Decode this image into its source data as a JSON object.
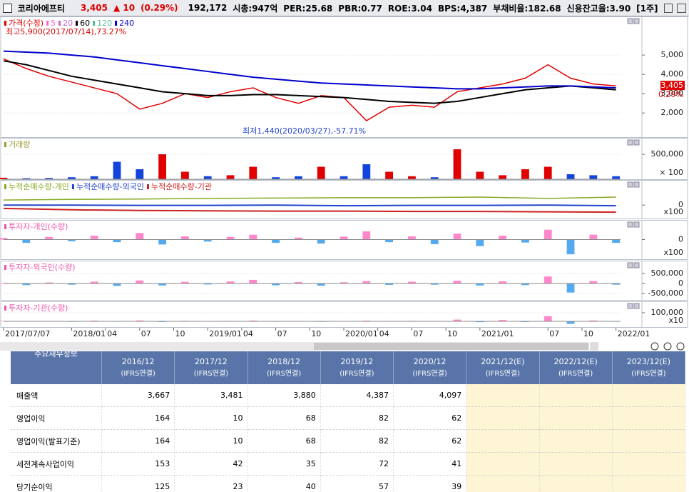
{
  "header": {
    "name": "코리아에프티",
    "price": "3,405",
    "change": "▲ 10",
    "rate": "(0.29%)",
    "volume": "192,172",
    "stats": [
      "시총:947억",
      "PER:25.68",
      "PBR:0.77",
      "ROE:3.04",
      "BPS:4,387",
      "부채비율:182.68",
      "신용잔고율:3.90"
    ],
    "period": "[1주]"
  },
  "price_panel": {
    "legend": [
      {
        "name": "가격(수정)",
        "color": "#e00000",
        "values": [
          4800,
          4300,
          3900,
          3600,
          3300,
          3000,
          2200,
          2500,
          3000,
          2800,
          3100,
          3300,
          2800,
          2500,
          2900,
          2800,
          1600,
          2300,
          2400,
          2300,
          3100,
          3300,
          3500,
          3800,
          4500,
          3800,
          3500,
          3405
        ]
      },
      {
        "name": "5",
        "color": "#ff66cc"
      },
      {
        "name": "20",
        "color": "#cc66cc"
      },
      {
        "name": "60",
        "color": "#000000",
        "values": [
          4700,
          4500,
          4200,
          3900,
          3700,
          3500,
          3300,
          3100,
          3000,
          2900,
          2900,
          2950,
          2950,
          2900,
          2850,
          2800,
          2700,
          2600,
          2550,
          2500,
          2600,
          2800,
          3000,
          3200,
          3300,
          3400,
          3300,
          3200
        ]
      },
      {
        "name": "120",
        "color": "#55bb99"
      },
      {
        "name": "240",
        "color": "#0000cc",
        "values": [
          5200,
          5150,
          5100,
          5000,
          4900,
          4750,
          4600,
          4450,
          4300,
          4150,
          4000,
          3850,
          3750,
          3650,
          3550,
          3500,
          3450,
          3400,
          3350,
          3300,
          3250,
          3250,
          3300,
          3350,
          3400,
          3400,
          3350,
          3300
        ]
      }
    ],
    "high_note": "최고5,900(2017/07/14),73.27%",
    "low_note": "최저1,440(2020/03/27),-57.71%",
    "last_price": "3,405",
    "last_rate": "0.29%",
    "ylim": [
      750,
      7000
    ],
    "yticks": [
      {
        "value": 5000,
        "label": "5,000"
      },
      {
        "value": 4000,
        "label": "4,000"
      },
      {
        "value": 3000,
        "label": "3,000"
      },
      {
        "value": 2000,
        "label": "2,000"
      }
    ]
  },
  "volume_panel": {
    "title": "거래량",
    "color": "#999933",
    "ylim": [
      0,
      830000
    ],
    "yticks": [
      {
        "value": 500000,
        "label": "500,000"
      }
    ],
    "multiplier": "× 100",
    "values": [
      30000,
      20000,
      25000,
      40000,
      60000,
      350000,
      200000,
      500000,
      150000,
      60000,
      80000,
      250000,
      40000,
      60000,
      250000,
      60000,
      300000,
      150000,
      60000,
      40000,
      600000,
      150000,
      80000,
      200000,
      250000,
      100000,
      80000,
      60000
    ]
  },
  "cumulative_panel": {
    "ylim": [
      -40,
      75
    ],
    "yticks": [
      0
    ],
    "multiplier": "x100",
    "legend": [
      {
        "name": "누적순매수량-개인",
        "color": "#88aa22",
        "values": [
          15,
          17,
          18,
          20,
          21,
          22,
          22,
          24,
          20,
          24
        ]
      },
      {
        "name": "누적순매수량-외국인",
        "color": "#2244cc",
        "values": [
          0,
          0,
          -1,
          -1,
          0,
          -2,
          -1,
          -1,
          0,
          -2
        ]
      },
      {
        "name": "누적순매수량-기관",
        "color": "#cc2222",
        "values": [
          -10,
          -14,
          -16,
          -17,
          -18,
          -18,
          -19,
          -19,
          -20,
          -21
        ]
      }
    ]
  },
  "individual_panel": {
    "title": "투자자-개인(수량)",
    "ylim": [
      -60,
      60
    ],
    "yticks": [
      0
    ],
    "multiplier": "x100",
    "values": [
      5,
      -10,
      8,
      -5,
      12,
      -8,
      20,
      -15,
      10,
      -6,
      8,
      15,
      -10,
      6,
      -12,
      9,
      25,
      -8,
      10,
      -14,
      18,
      -20,
      12,
      -9,
      30,
      -45,
      15,
      -10
    ]
  },
  "foreign_panel": {
    "title": "투자자-외국인(수량)",
    "ylim": [
      -820000,
      1140000
    ],
    "yticks": [
      {
        "value": 500000,
        "label": "500,000"
      },
      0,
      {
        "value": -500000,
        "label": "-500,000"
      }
    ],
    "values": [
      30000,
      -80000,
      50000,
      -60000,
      90000,
      -120000,
      150000,
      -100000,
      80000,
      -50000,
      100000,
      180000,
      -90000,
      70000,
      -110000,
      60000,
      120000,
      -70000,
      90000,
      -60000,
      140000,
      -100000,
      110000,
      -80000,
      350000,
      -450000,
      120000,
      -60000
    ]
  },
  "institution_panel": {
    "title": "투자자-기관(수량)",
    "ylim": [
      -67000,
      233000
    ],
    "yticks": [
      {
        "value": 100000,
        "label": "100,000"
      }
    ],
    "multiplier": "x10",
    "values": [
      5000,
      -3000,
      4000,
      -6000,
      8000,
      -5000,
      10000,
      -8000,
      6000,
      -4000,
      5000,
      9000,
      -5000,
      4000,
      -6000,
      3000,
      8000,
      -4000,
      6000,
      -3000,
      20000,
      -10000,
      15000,
      -8000,
      60000,
      -30000,
      10000,
      -5000
    ]
  },
  "x_axis": {
    "xlim": [
      0,
      54.4
    ],
    "ticks": [
      {
        "value": 0,
        "label": "2017/07/07"
      },
      {
        "value": 6,
        "label": "2018/01"
      },
      {
        "value": 9,
        "label": "04"
      },
      {
        "value": 12,
        "label": "07"
      },
      {
        "value": 15,
        "label": "10"
      },
      {
        "value": 18,
        "label": "2019/01"
      },
      {
        "value": 21,
        "label": "04"
      },
      {
        "value": 24,
        "label": "07"
      },
      {
        "value": 27,
        "label": "10"
      },
      {
        "value": 30,
        "label": "2020/01"
      },
      {
        "value": 33,
        "label": "04"
      },
      {
        "value": 36,
        "label": "07"
      },
      {
        "value": 39,
        "label": "10"
      },
      {
        "value": 42,
        "label": "2021/01"
      },
      {
        "value": 48,
        "label": "07"
      },
      {
        "value": 51,
        "label": "10"
      },
      {
        "value": 54,
        "label": "2022/01"
      }
    ]
  },
  "table": {
    "title": "주요재무정보",
    "columns": [
      {
        "year": "2016/12",
        "basis": "(IFRS연결)"
      },
      {
        "year": "2017/12",
        "basis": "(IFRS연결)"
      },
      {
        "year": "2018/12",
        "basis": "(IFRS연결)"
      },
      {
        "year": "2019/12",
        "basis": "(IFRS연결)"
      },
      {
        "year": "2020/12",
        "basis": "(IFRS연결)"
      },
      {
        "year": "2021/12(E)",
        "basis": "(IFRS연결)"
      },
      {
        "year": "2022/12(E)",
        "basis": "(IFRS연결)"
      },
      {
        "year": "2023/12(E)",
        "basis": "(IFRS연결)"
      }
    ],
    "rows": [
      {
        "label": "매출액",
        "cells": [
          "3,667",
          "3,481",
          "3,880",
          "4,387",
          "4,097"
        ]
      },
      {
        "label": "영업이익",
        "cells": [
          "164",
          "10",
          "68",
          "82",
          "62"
        ]
      },
      {
        "label": "영업이익(발표기준)",
        "cells": [
          "164",
          "10",
          "68",
          "82",
          "62"
        ]
      },
      {
        "label": "세전계속사업이익",
        "cells": [
          "153",
          "42",
          "35",
          "72",
          "41"
        ]
      },
      {
        "label": "당기순이익",
        "cells": [
          "125",
          "23",
          "40",
          "57",
          "39"
        ]
      }
    ]
  }
}
